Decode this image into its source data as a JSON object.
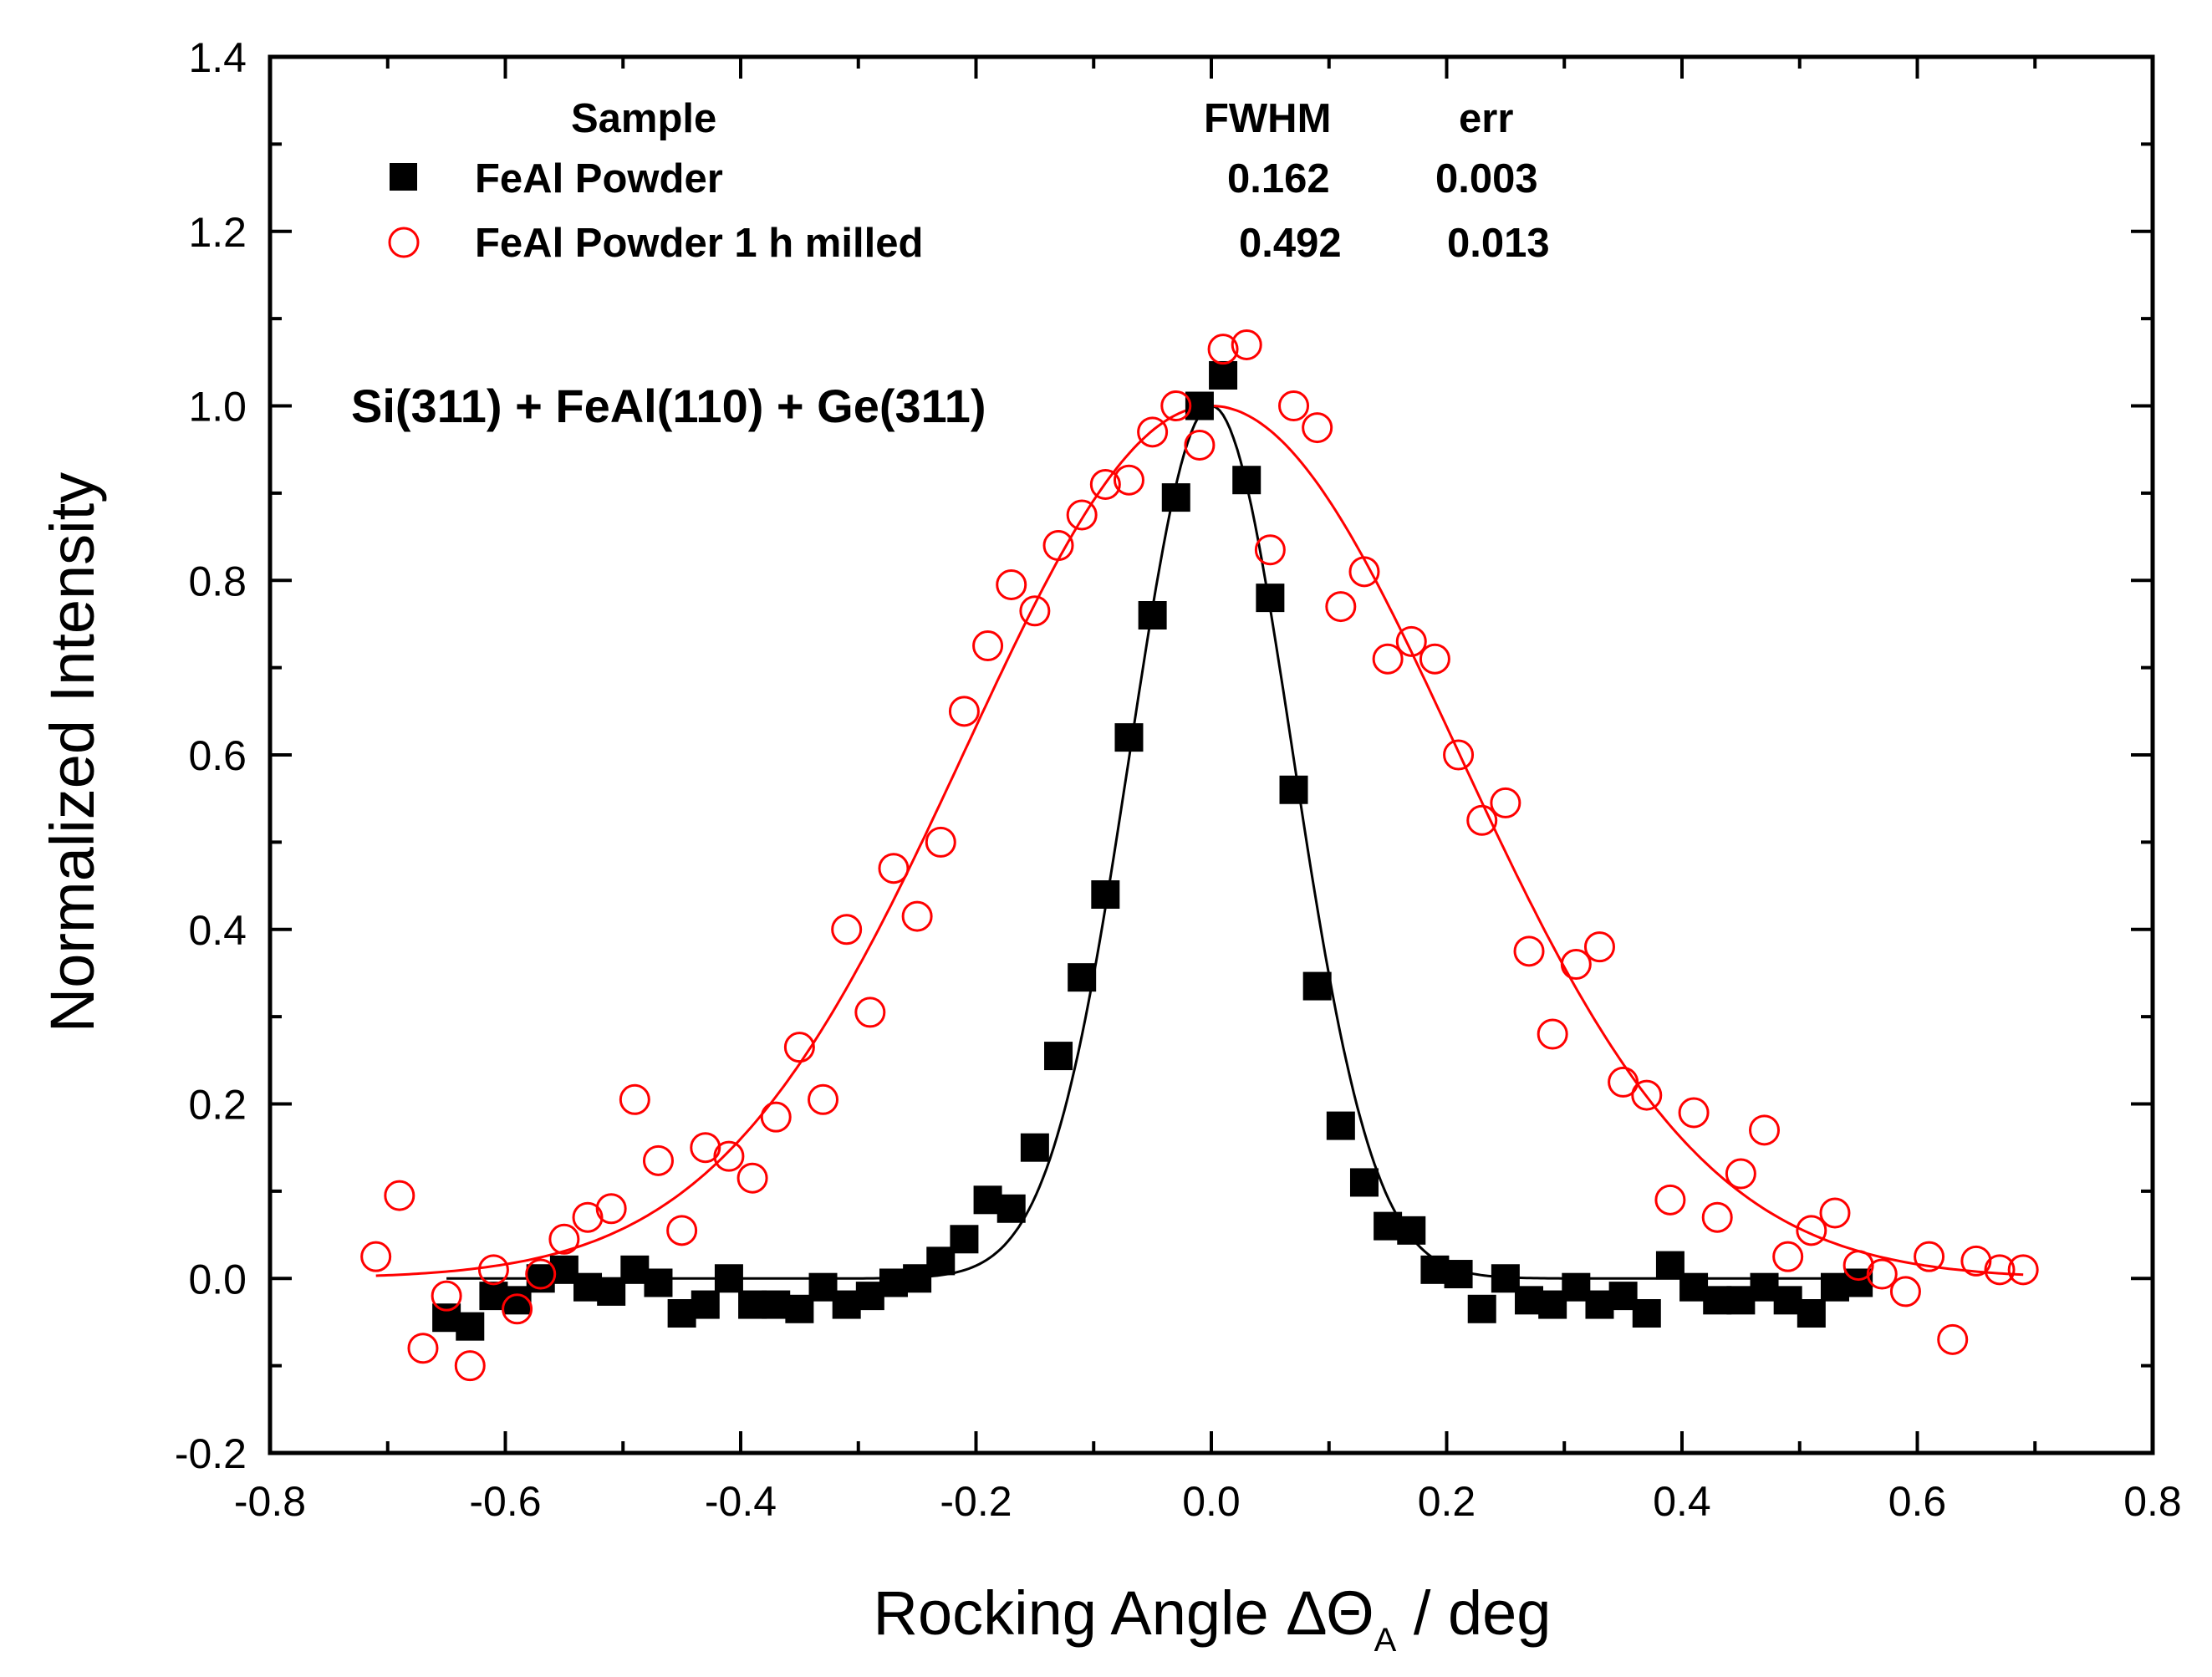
{
  "chart_data": {
    "type": "scatter",
    "xlabel_main": "Rocking Angle Δ",
    "xlabel_theta": "Θ",
    "xlabel_sub": "A",
    "xlabel_tail": " / deg",
    "ylabel": "Normalized Intensity",
    "xlim": [
      -0.8,
      0.8
    ],
    "ylim": [
      -0.2,
      1.4
    ],
    "x_ticks": [
      "-0.8",
      "-0.6",
      "-0.4",
      "-0.2",
      "0.0",
      "0.2",
      "0.4",
      "0.6",
      "0.8"
    ],
    "y_ticks": [
      "-0.2",
      "0.0",
      "0.2",
      "0.4",
      "0.6",
      "0.8",
      "1.0",
      "1.2",
      "1.4"
    ],
    "annotation": "Si(311) + FeAl(110) + Ge(311)",
    "legend": {
      "header_sample": "Sample",
      "header_fwhm": "FWHM",
      "header_err": "err",
      "entries": [
        {
          "name": "FeAl Powder",
          "fwhm": "0.162",
          "err": "0.003"
        },
        {
          "name": "FeAl Powder 1 h milled",
          "fwhm": "0.492",
          "err": "0.013"
        }
      ]
    },
    "series": [
      {
        "name": "FeAl Powder",
        "marker": "filled-square",
        "color": "#000000",
        "fit_fwhm": 0.162,
        "fit_center": 0.0,
        "points": [
          [
            -0.65,
            -0.045
          ],
          [
            -0.63,
            -0.055
          ],
          [
            -0.61,
            -0.02
          ],
          [
            -0.59,
            -0.025
          ],
          [
            -0.57,
            0.0
          ],
          [
            -0.55,
            0.01
          ],
          [
            -0.53,
            -0.01
          ],
          [
            -0.51,
            -0.015
          ],
          [
            -0.49,
            0.01
          ],
          [
            -0.47,
            -0.005
          ],
          [
            -0.45,
            -0.04
          ],
          [
            -0.43,
            -0.03
          ],
          [
            -0.41,
            0.0
          ],
          [
            -0.39,
            -0.03
          ],
          [
            -0.37,
            -0.03
          ],
          [
            -0.35,
            -0.035
          ],
          [
            -0.33,
            -0.01
          ],
          [
            -0.31,
            -0.03
          ],
          [
            -0.29,
            -0.02
          ],
          [
            -0.27,
            -0.005
          ],
          [
            -0.25,
            0.0
          ],
          [
            -0.23,
            0.02
          ],
          [
            -0.21,
            0.045
          ],
          [
            -0.19,
            0.09
          ],
          [
            -0.17,
            0.08
          ],
          [
            -0.15,
            0.15
          ],
          [
            -0.13,
            0.255
          ],
          [
            -0.11,
            0.345
          ],
          [
            -0.09,
            0.44
          ],
          [
            -0.07,
            0.62
          ],
          [
            -0.05,
            0.76
          ],
          [
            -0.03,
            0.895
          ],
          [
            -0.01,
            1.0
          ],
          [
            0.01,
            1.035
          ],
          [
            0.03,
            0.915
          ],
          [
            0.05,
            0.78
          ],
          [
            0.07,
            0.56
          ],
          [
            0.09,
            0.335
          ],
          [
            0.11,
            0.175
          ],
          [
            0.13,
            0.11
          ],
          [
            0.15,
            0.06
          ],
          [
            0.17,
            0.055
          ],
          [
            0.19,
            0.01
          ],
          [
            0.21,
            0.005
          ],
          [
            0.23,
            -0.035
          ],
          [
            0.25,
            0.0
          ],
          [
            0.27,
            -0.025
          ],
          [
            0.29,
            -0.03
          ],
          [
            0.31,
            -0.01
          ],
          [
            0.33,
            -0.03
          ],
          [
            0.35,
            -0.02
          ],
          [
            0.37,
            -0.04
          ],
          [
            0.39,
            0.015
          ],
          [
            0.41,
            -0.01
          ],
          [
            0.43,
            -0.025
          ],
          [
            0.45,
            -0.025
          ],
          [
            0.47,
            -0.01
          ],
          [
            0.49,
            -0.025
          ],
          [
            0.51,
            -0.04
          ],
          [
            0.53,
            -0.01
          ],
          [
            0.55,
            -0.005
          ]
        ]
      },
      {
        "name": "FeAl Powder 1 h milled",
        "marker": "open-circle",
        "color": "#ff0000",
        "fit_fwhm": 0.492,
        "fit_center": 0.0,
        "points": [
          [
            -0.71,
            0.025
          ],
          [
            -0.69,
            0.095
          ],
          [
            -0.67,
            -0.08
          ],
          [
            -0.65,
            -0.02
          ],
          [
            -0.63,
            -0.1
          ],
          [
            -0.61,
            0.01
          ],
          [
            -0.59,
            -0.035
          ],
          [
            -0.57,
            0.005
          ],
          [
            -0.55,
            0.045
          ],
          [
            -0.53,
            0.07
          ],
          [
            -0.51,
            0.08
          ],
          [
            -0.49,
            0.205
          ],
          [
            -0.47,
            0.135
          ],
          [
            -0.45,
            0.055
          ],
          [
            -0.43,
            0.15
          ],
          [
            -0.41,
            0.14
          ],
          [
            -0.39,
            0.115
          ],
          [
            -0.37,
            0.185
          ],
          [
            -0.35,
            0.265
          ],
          [
            -0.33,
            0.205
          ],
          [
            -0.31,
            0.4
          ],
          [
            -0.29,
            0.305
          ],
          [
            -0.27,
            0.47
          ],
          [
            -0.25,
            0.415
          ],
          [
            -0.23,
            0.5
          ],
          [
            -0.21,
            0.65
          ],
          [
            -0.19,
            0.725
          ],
          [
            -0.17,
            0.795
          ],
          [
            -0.15,
            0.765
          ],
          [
            -0.13,
            0.84
          ],
          [
            -0.11,
            0.875
          ],
          [
            -0.09,
            0.91
          ],
          [
            -0.07,
            0.915
          ],
          [
            -0.05,
            0.97
          ],
          [
            -0.03,
            1.0
          ],
          [
            -0.01,
            0.955
          ],
          [
            0.01,
            1.065
          ],
          [
            0.03,
            1.07
          ],
          [
            0.07,
            1.0
          ],
          [
            0.09,
            0.975
          ],
          [
            0.05,
            0.835
          ],
          [
            0.11,
            0.77
          ],
          [
            0.13,
            0.81
          ],
          [
            0.15,
            0.71
          ],
          [
            0.17,
            0.73
          ],
          [
            0.19,
            0.71
          ],
          [
            0.21,
            0.6
          ],
          [
            0.23,
            0.525
          ],
          [
            0.25,
            0.545
          ],
          [
            0.27,
            0.375
          ],
          [
            0.29,
            0.28
          ],
          [
            0.31,
            0.36
          ],
          [
            0.33,
            0.38
          ],
          [
            0.35,
            0.225
          ],
          [
            0.37,
            0.21
          ],
          [
            0.39,
            0.09
          ],
          [
            0.41,
            0.19
          ],
          [
            0.43,
            0.07
          ],
          [
            0.45,
            0.12
          ],
          [
            0.47,
            0.17
          ],
          [
            0.49,
            0.025
          ],
          [
            0.51,
            0.055
          ],
          [
            0.53,
            0.075
          ],
          [
            0.55,
            0.015
          ],
          [
            0.57,
            0.005
          ],
          [
            0.59,
            -0.015
          ],
          [
            0.61,
            0.025
          ],
          [
            0.63,
            -0.07
          ],
          [
            0.65,
            0.02
          ],
          [
            0.67,
            0.01
          ],
          [
            0.69,
            0.01
          ]
        ]
      }
    ]
  }
}
